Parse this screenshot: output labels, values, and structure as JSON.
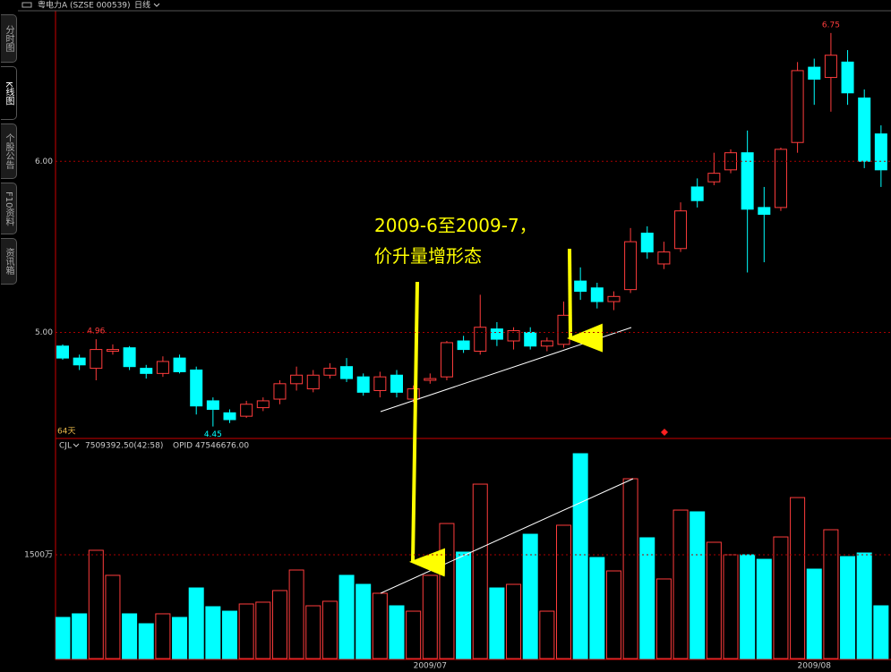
{
  "header": {
    "title": "粤电力A (SZSE 000539)",
    "period": "日线"
  },
  "tabs": [
    "分时图",
    "K线图",
    "个股公告",
    "F10资料",
    "资讯箱"
  ],
  "annotation": [
    "2009-6至2009-7，",
    "价升量增形态"
  ],
  "chart_data": [
    {
      "type": "candlestick",
      "period": "64天",
      "up_color": "#ff3c3c",
      "down_color": "#00ffff",
      "open": [
        4.92,
        4.85,
        4.79,
        4.89,
        4.91,
        4.79,
        4.76,
        4.85,
        4.78,
        4.6,
        4.53,
        4.51,
        4.56,
        4.61,
        4.7,
        4.67,
        4.75,
        4.8,
        4.74,
        4.66,
        4.75,
        4.61,
        4.72,
        4.74,
        4.95,
        4.89,
        5.02,
        4.95,
        5.0,
        4.92,
        4.93,
        5.3,
        5.26,
        5.18,
        5.25,
        5.58,
        5.4,
        5.49,
        5.85,
        5.88,
        5.95,
        6.05,
        5.73,
        5.73,
        6.11,
        6.55,
        6.49,
        6.58,
        6.37,
        6.16
      ],
      "high": [
        4.93,
        4.87,
        4.96,
        4.93,
        4.92,
        4.81,
        4.86,
        4.87,
        4.8,
        4.62,
        4.55,
        4.6,
        4.62,
        4.72,
        4.8,
        4.78,
        4.82,
        4.85,
        4.76,
        4.77,
        4.78,
        4.69,
        4.76,
        4.95,
        4.98,
        5.22,
        5.06,
        5.03,
        5.03,
        4.97,
        5.18,
        5.38,
        5.29,
        5.24,
        5.61,
        5.62,
        5.53,
        5.76,
        5.9,
        6.05,
        6.07,
        6.18,
        5.85,
        6.08,
        6.58,
        6.6,
        6.75,
        6.65,
        6.42,
        6.21
      ],
      "low": [
        4.84,
        4.78,
        4.72,
        4.87,
        4.78,
        4.73,
        4.74,
        4.76,
        4.52,
        4.45,
        4.47,
        4.5,
        4.54,
        4.58,
        4.66,
        4.65,
        4.73,
        4.71,
        4.63,
        4.62,
        4.62,
        4.59,
        4.7,
        4.72,
        4.88,
        4.87,
        4.92,
        4.9,
        4.9,
        4.89,
        4.91,
        5.19,
        5.14,
        5.13,
        5.23,
        5.43,
        5.37,
        5.47,
        5.73,
        5.86,
        5.93,
        5.35,
        5.41,
        5.71,
        6.05,
        6.33,
        6.29,
        6.33,
        5.96,
        5.85
      ],
      "close": [
        4.85,
        4.81,
        4.9,
        4.9,
        4.8,
        4.76,
        4.83,
        4.77,
        4.57,
        4.55,
        4.49,
        4.58,
        4.6,
        4.7,
        4.75,
        4.75,
        4.79,
        4.73,
        4.65,
        4.74,
        4.65,
        4.67,
        4.73,
        4.94,
        4.9,
        5.03,
        4.96,
        5.01,
        4.92,
        4.95,
        5.1,
        5.24,
        5.18,
        5.21,
        5.53,
        5.47,
        5.47,
        5.71,
        5.77,
        5.93,
        6.05,
        5.72,
        5.69,
        6.07,
        6.53,
        6.48,
        6.62,
        6.4,
        6.0,
        5.95
      ],
      "high_labels": [
        null,
        null,
        "4.96",
        null,
        null,
        null,
        null,
        null,
        null,
        null,
        null,
        null,
        null,
        null,
        null,
        null,
        null,
        null,
        null,
        null,
        null,
        null,
        null,
        null,
        null,
        null,
        null,
        null,
        null,
        null,
        null,
        null,
        null,
        null,
        null,
        null,
        null,
        null,
        null,
        null,
        null,
        null,
        null,
        null,
        null,
        null,
        "6.75",
        null,
        null,
        null
      ],
      "low_labels": [
        null,
        null,
        null,
        null,
        null,
        null,
        null,
        null,
        null,
        "4.45",
        null,
        null,
        null,
        null,
        null,
        null,
        null,
        null,
        null,
        null,
        null,
        null,
        null,
        null,
        null,
        null,
        null,
        null,
        null,
        null,
        null,
        null,
        null,
        null,
        null,
        null,
        null,
        null,
        null,
        null,
        null,
        null,
        null,
        null,
        null,
        null,
        null,
        null,
        null,
        null
      ],
      "ylim": [
        4.38,
        6.88
      ],
      "yticks": [
        {
          "value": 5,
          "label": "5.00"
        },
        {
          "value": 6,
          "label": "6.00"
        }
      ],
      "grid": true
    },
    {
      "type": "bar",
      "title": "CJL",
      "info": [
        "7509392.50(42:58)",
        "OPID 47546676.00"
      ],
      "categories": [
        null,
        null,
        null,
        null,
        null,
        null,
        null,
        null,
        null,
        null,
        null,
        null,
        null,
        null,
        null,
        null,
        null,
        null,
        null,
        null,
        null,
        null,
        "2009/07",
        null,
        null,
        null,
        null,
        null,
        null,
        null,
        null,
        null,
        null,
        null,
        null,
        null,
        null,
        null,
        null,
        null,
        null,
        null,
        null,
        null,
        null,
        "2009/08",
        null,
        null,
        null,
        null
      ],
      "values": [
        595,
        647,
        1565,
        1203,
        647,
        504,
        647,
        595,
        1021,
        750,
        685,
        789,
        815,
        983,
        1280,
        763,
        828,
        1203,
        1073,
        944,
        763,
        685,
        1203,
        1952,
        1539,
        2521,
        1021,
        1073,
        1797,
        685,
        1927,
        2961,
        1461,
        1267,
        2599,
        1746,
        1151,
        2146,
        2121,
        1681,
        1500,
        1500,
        1435,
        1758,
        2327,
        1293,
        1862,
        1474,
        1526,
        763
      ],
      "ylim": [
        0,
        3000
      ],
      "yticks": [
        {
          "value": 1500,
          "label": "1500万"
        }
      ],
      "grid": true
    }
  ]
}
